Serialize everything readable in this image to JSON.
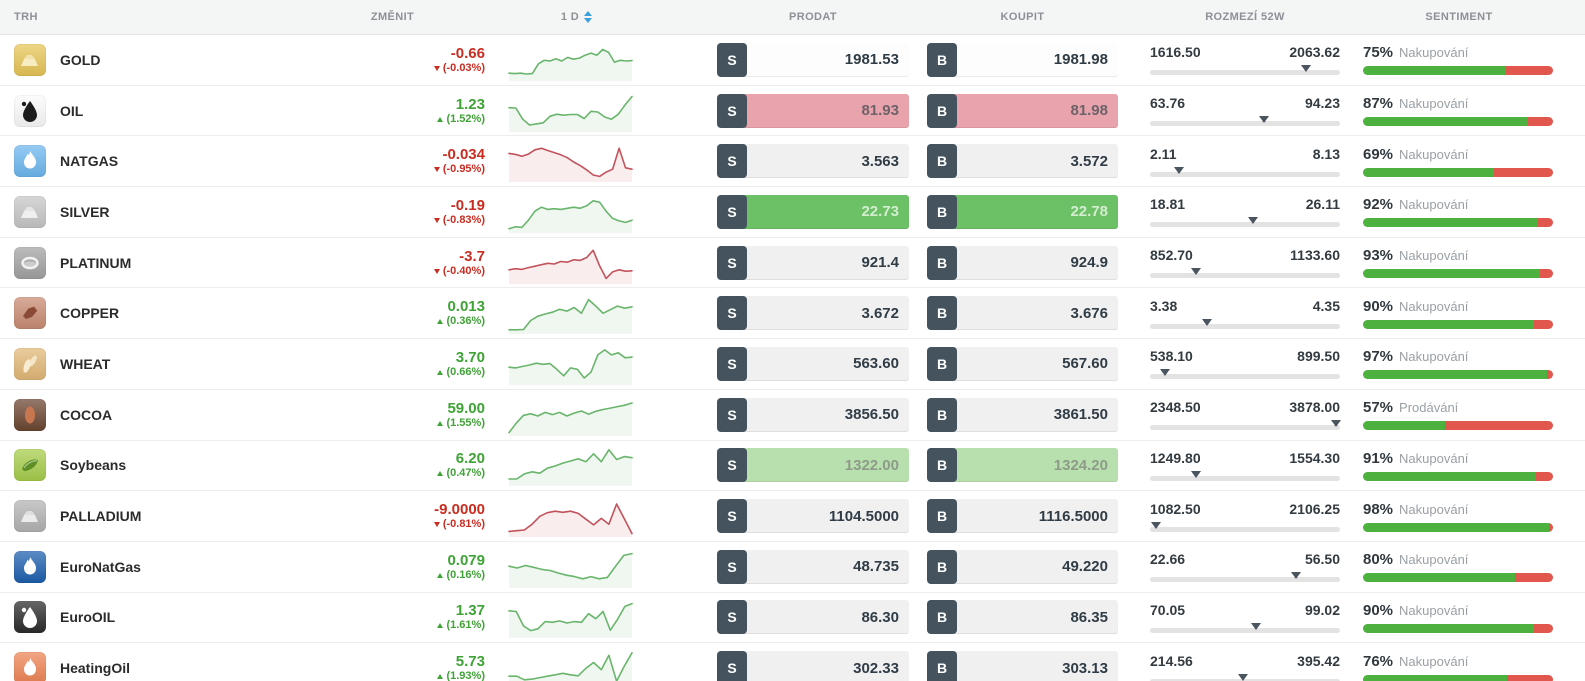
{
  "header": {
    "market": "TRH",
    "change": "ZMĚNIT",
    "period": "1 D",
    "sell": "PRODAT",
    "buy": "KOUPIT",
    "range": "ROZMEZÍ 52W",
    "sentiment": "SENTIMENT"
  },
  "colors": {
    "change_green": "#3fa336",
    "change_red": "#c92d21",
    "spark_green": "#69b56c",
    "spark_red": "#c2535c",
    "spark_green_fill": "rgba(105,181,108,0.10)",
    "spark_red_fill": "rgba(194,83,92,0.10)",
    "sentiment_green": "#4cb13f",
    "sentiment_red": "#e2574d",
    "cell_default_bg": "#f0f0f0",
    "cell_default_text": "#303c46",
    "sort_arrow": "#3aa0dc",
    "sb_button": "#44535e"
  },
  "rows": [
    {
      "name": "GOLD",
      "icon": "gold-ingot-icon",
      "icon_shape": "ingot",
      "icon_bg": "#e7c557",
      "icon_fg": "#f7ecc2",
      "change": "-0.66",
      "change_pct": "(-0.03%)",
      "dir": "down",
      "spark_color": "green",
      "spark": [
        0.16,
        0.15,
        0.16,
        0.14,
        0.15,
        0.42,
        0.52,
        0.5,
        0.56,
        0.5,
        0.6,
        0.55,
        0.58,
        0.66,
        0.72,
        0.66,
        0.82,
        0.74,
        0.47,
        0.52,
        0.5,
        0.51
      ],
      "sell": "1981.53",
      "buy": "1981.98",
      "cell_bg": "#fdfdfd",
      "cell_text": "#2f3b45",
      "range_low": "1616.50",
      "range_high": "2063.62",
      "range_pos": 82,
      "sentiment_pct": "75%",
      "sentiment_label": "Nakupování",
      "sentiment_green": 75
    },
    {
      "name": "OIL",
      "icon": "oil-drop-icon",
      "icon_shape": "drop",
      "icon_bg": "#fbfbfb",
      "icon_fg": "#1c1c1c",
      "change": "1.23",
      "change_pct": "(1.52%)",
      "dir": "up",
      "spark_color": "green",
      "spark": [
        0.62,
        0.61,
        0.3,
        0.14,
        0.17,
        0.2,
        0.38,
        0.44,
        0.41,
        0.43,
        0.43,
        0.32,
        0.52,
        0.5,
        0.36,
        0.3,
        0.44,
        0.7,
        0.93
      ],
      "sell": "81.93",
      "buy": "81.98",
      "cell_bg": "#e8a3ad",
      "cell_text": "#6e6269",
      "range_low": "63.76",
      "range_high": "94.23",
      "range_pos": 60,
      "sentiment_pct": "87%",
      "sentiment_label": "Nakupování",
      "sentiment_green": 87
    },
    {
      "name": "NATGAS",
      "icon": "gas-flame-icon",
      "icon_shape": "flame",
      "icon_bg": "#6db7ef",
      "icon_fg": "#ffffff",
      "change": "-0.034",
      "change_pct": "(-0.95%)",
      "dir": "down",
      "spark_color": "red",
      "spark": [
        0.74,
        0.71,
        0.66,
        0.72,
        0.84,
        0.88,
        0.82,
        0.76,
        0.7,
        0.62,
        0.5,
        0.4,
        0.28,
        0.14,
        0.1,
        0.22,
        0.3,
        0.88,
        0.34,
        0.3
      ],
      "sell": "3.563",
      "buy": "3.572",
      "cell_bg": "",
      "cell_text": "",
      "range_low": "2.11",
      "range_high": "8.13",
      "range_pos": 15,
      "sentiment_pct": "69%",
      "sentiment_label": "Nakupování",
      "sentiment_green": 69
    },
    {
      "name": "SILVER",
      "icon": "silver-ingot-icon",
      "icon_shape": "ingot",
      "icon_bg": "#c6c6c6",
      "icon_fg": "#efefef",
      "change": "-0.19",
      "change_pct": "(-0.83%)",
      "dir": "down",
      "spark_color": "green",
      "spark": [
        0.06,
        0.12,
        0.1,
        0.3,
        0.55,
        0.66,
        0.6,
        0.62,
        0.6,
        0.63,
        0.66,
        0.63,
        0.7,
        0.84,
        0.8,
        0.55,
        0.35,
        0.28,
        0.24,
        0.3
      ],
      "sell": "22.73",
      "buy": "22.78",
      "cell_bg": "#6cc066",
      "cell_text": "#d4edd0",
      "range_low": "18.81",
      "range_high": "26.11",
      "range_pos": 54,
      "sentiment_pct": "92%",
      "sentiment_label": "Nakupování",
      "sentiment_green": 92
    },
    {
      "name": "PLATINUM",
      "icon": "platinum-ring-icon",
      "icon_shape": "ring",
      "icon_bg": "#a2a2a2",
      "icon_fg": "#f2f2f2",
      "change": "-3.7",
      "change_pct": "(-0.40%)",
      "dir": "down",
      "spark_color": "red",
      "spark": [
        0.34,
        0.37,
        0.35,
        0.4,
        0.44,
        0.48,
        0.52,
        0.5,
        0.57,
        0.55,
        0.62,
        0.6,
        0.68,
        0.88,
        0.45,
        0.1,
        0.28,
        0.34,
        0.3,
        0.31
      ],
      "sell": "921.4",
      "buy": "924.9",
      "cell_bg": "",
      "cell_text": "",
      "range_low": "852.70",
      "range_high": "1133.60",
      "range_pos": 24,
      "sentiment_pct": "93%",
      "sentiment_label": "Nakupování",
      "sentiment_green": 93
    },
    {
      "name": "COPPER",
      "icon": "copper-nugget-icon",
      "icon_shape": "nugget",
      "icon_bg": "#c98b72",
      "icon_fg": "#8a4a36",
      "change": "0.013",
      "change_pct": "(0.36%)",
      "dir": "up",
      "spark_color": "green",
      "spark": [
        0.06,
        0.06,
        0.07,
        0.32,
        0.44,
        0.5,
        0.55,
        0.63,
        0.58,
        0.68,
        0.52,
        0.9,
        0.72,
        0.52,
        0.62,
        0.72,
        0.66,
        0.7
      ],
      "sell": "3.672",
      "buy": "3.676",
      "cell_bg": "",
      "cell_text": "",
      "range_low": "3.38",
      "range_high": "4.35",
      "range_pos": 30,
      "sentiment_pct": "90%",
      "sentiment_label": "Nakupování",
      "sentiment_green": 90
    },
    {
      "name": "WHEAT",
      "icon": "wheat-icon",
      "icon_shape": "wheat",
      "icon_bg": "#e2b877",
      "icon_fg": "#f8ecd2",
      "change": "3.70",
      "change_pct": "(0.66%)",
      "dir": "up",
      "spark_color": "green",
      "spark": [
        0.44,
        0.42,
        0.46,
        0.5,
        0.55,
        0.52,
        0.54,
        0.38,
        0.2,
        0.42,
        0.38,
        0.14,
        0.3,
        0.78,
        0.92,
        0.78,
        0.84,
        0.7,
        0.72
      ],
      "sell": "563.60",
      "buy": "567.60",
      "cell_bg": "",
      "cell_text": "",
      "range_low": "538.10",
      "range_high": "899.50",
      "range_pos": 8,
      "sentiment_pct": "97%",
      "sentiment_label": "Nakupování",
      "sentiment_green": 97
    },
    {
      "name": "COCOA",
      "icon": "cocoa-pod-icon",
      "icon_shape": "pod",
      "icon_bg": "#6b4531",
      "icon_fg": "#c8764f",
      "change": "59.00",
      "change_pct": "(1.55%)",
      "dir": "up",
      "spark_color": "green",
      "spark": [
        0.04,
        0.3,
        0.52,
        0.56,
        0.5,
        0.6,
        0.54,
        0.6,
        0.5,
        0.58,
        0.64,
        0.55,
        0.63,
        0.68,
        0.72,
        0.76,
        0.8,
        0.86
      ],
      "sell": "3856.50",
      "buy": "3861.50",
      "cell_bg": "",
      "cell_text": "",
      "range_low": "2348.50",
      "range_high": "3878.00",
      "range_pos": 98,
      "sentiment_pct": "57%",
      "sentiment_label": "Prodávání",
      "sentiment_green": 43
    },
    {
      "name": "Soybeans",
      "icon": "soybean-pod-icon",
      "icon_shape": "bean",
      "icon_bg": "#a6cd4b",
      "icon_fg": "#5d8f25",
      "change": "6.20",
      "change_pct": "(0.47%)",
      "dir": "up",
      "spark_color": "green",
      "spark": [
        0.14,
        0.14,
        0.28,
        0.34,
        0.3,
        0.44,
        0.5,
        0.58,
        0.64,
        0.7,
        0.62,
        0.84,
        0.62,
        0.95,
        0.68,
        0.76,
        0.73
      ],
      "sell": "1322.00",
      "buy": "1324.20",
      "cell_bg": "#b8e0ae",
      "cell_text": "#8d9b88",
      "range_low": "1249.80",
      "range_high": "1554.30",
      "range_pos": 24,
      "sentiment_pct": "91%",
      "sentiment_label": "Nakupování",
      "sentiment_green": 91
    },
    {
      "name": "PALLADIUM",
      "icon": "palladium-ingot-icon",
      "icon_shape": "ingot",
      "icon_bg": "#b3b3b3",
      "icon_fg": "#ebebeb",
      "change": "-9.0000",
      "change_pct": "(-0.81%)",
      "dir": "down",
      "spark_color": "red",
      "spark": [
        0.1,
        0.12,
        0.14,
        0.3,
        0.52,
        0.62,
        0.66,
        0.63,
        0.66,
        0.6,
        0.44,
        0.28,
        0.46,
        0.3,
        0.86,
        0.45,
        0.04
      ],
      "sell": "1104.5000",
      "buy": "1116.5000",
      "cell_bg": "",
      "cell_text": "",
      "range_low": "1082.50",
      "range_high": "2106.25",
      "range_pos": 3,
      "sentiment_pct": "98%",
      "sentiment_label": "Nakupování",
      "sentiment_green": 98
    },
    {
      "name": "EuroNatGas",
      "icon": "euro-gas-flame-icon",
      "icon_shape": "flame",
      "icon_bg": "#1d5fae",
      "icon_fg": "#ffffff",
      "change": "0.079",
      "change_pct": "(0.16%)",
      "dir": "up",
      "spark_color": "green",
      "spark": [
        0.55,
        0.5,
        0.57,
        0.52,
        0.46,
        0.43,
        0.36,
        0.3,
        0.26,
        0.2,
        0.26,
        0.2,
        0.24,
        0.55,
        0.85,
        0.9
      ],
      "sell": "48.735",
      "buy": "49.220",
      "cell_bg": "",
      "cell_text": "",
      "range_low": "22.66",
      "range_high": "56.50",
      "range_pos": 77,
      "sentiment_pct": "80%",
      "sentiment_label": "Nakupování",
      "sentiment_green": 80
    },
    {
      "name": "EuroOIL",
      "icon": "euro-oil-drop-icon",
      "icon_shape": "drop",
      "icon_bg": "#2b2b2b",
      "icon_fg": "#ffffff",
      "change": "1.37",
      "change_pct": "(1.61%)",
      "dir": "up",
      "spark_color": "green",
      "spark": [
        0.7,
        0.68,
        0.28,
        0.15,
        0.2,
        0.4,
        0.38,
        0.42,
        0.36,
        0.4,
        0.38,
        0.62,
        0.48,
        0.68,
        0.16,
        0.46,
        0.82,
        0.9
      ],
      "sell": "86.30",
      "buy": "86.35",
      "cell_bg": "",
      "cell_text": "",
      "range_low": "70.05",
      "range_high": "99.02",
      "range_pos": 56,
      "sentiment_pct": "90%",
      "sentiment_label": "Nakupování",
      "sentiment_green": 90
    },
    {
      "name": "HeatingOil",
      "icon": "heating-flame-icon",
      "icon_shape": "flame",
      "icon_bg": "#ee8354",
      "icon_fg": "#ffffff",
      "change": "5.73",
      "change_pct": "(1.93%)",
      "dir": "up",
      "spark_color": "green",
      "spark": [
        0.3,
        0.3,
        0.2,
        0.22,
        0.26,
        0.3,
        0.34,
        0.38,
        0.34,
        0.31,
        0.52,
        0.68,
        0.48,
        0.88,
        0.16,
        0.58,
        0.95
      ],
      "sell": "302.33",
      "buy": "303.13",
      "cell_bg": "",
      "cell_text": "",
      "range_low": "214.56",
      "range_high": "395.42",
      "range_pos": 49,
      "sentiment_pct": "76%",
      "sentiment_label": "Nakupování",
      "sentiment_green": 76
    }
  ],
  "trade_buttons": {
    "sell_letter": "S",
    "buy_letter": "B"
  }
}
